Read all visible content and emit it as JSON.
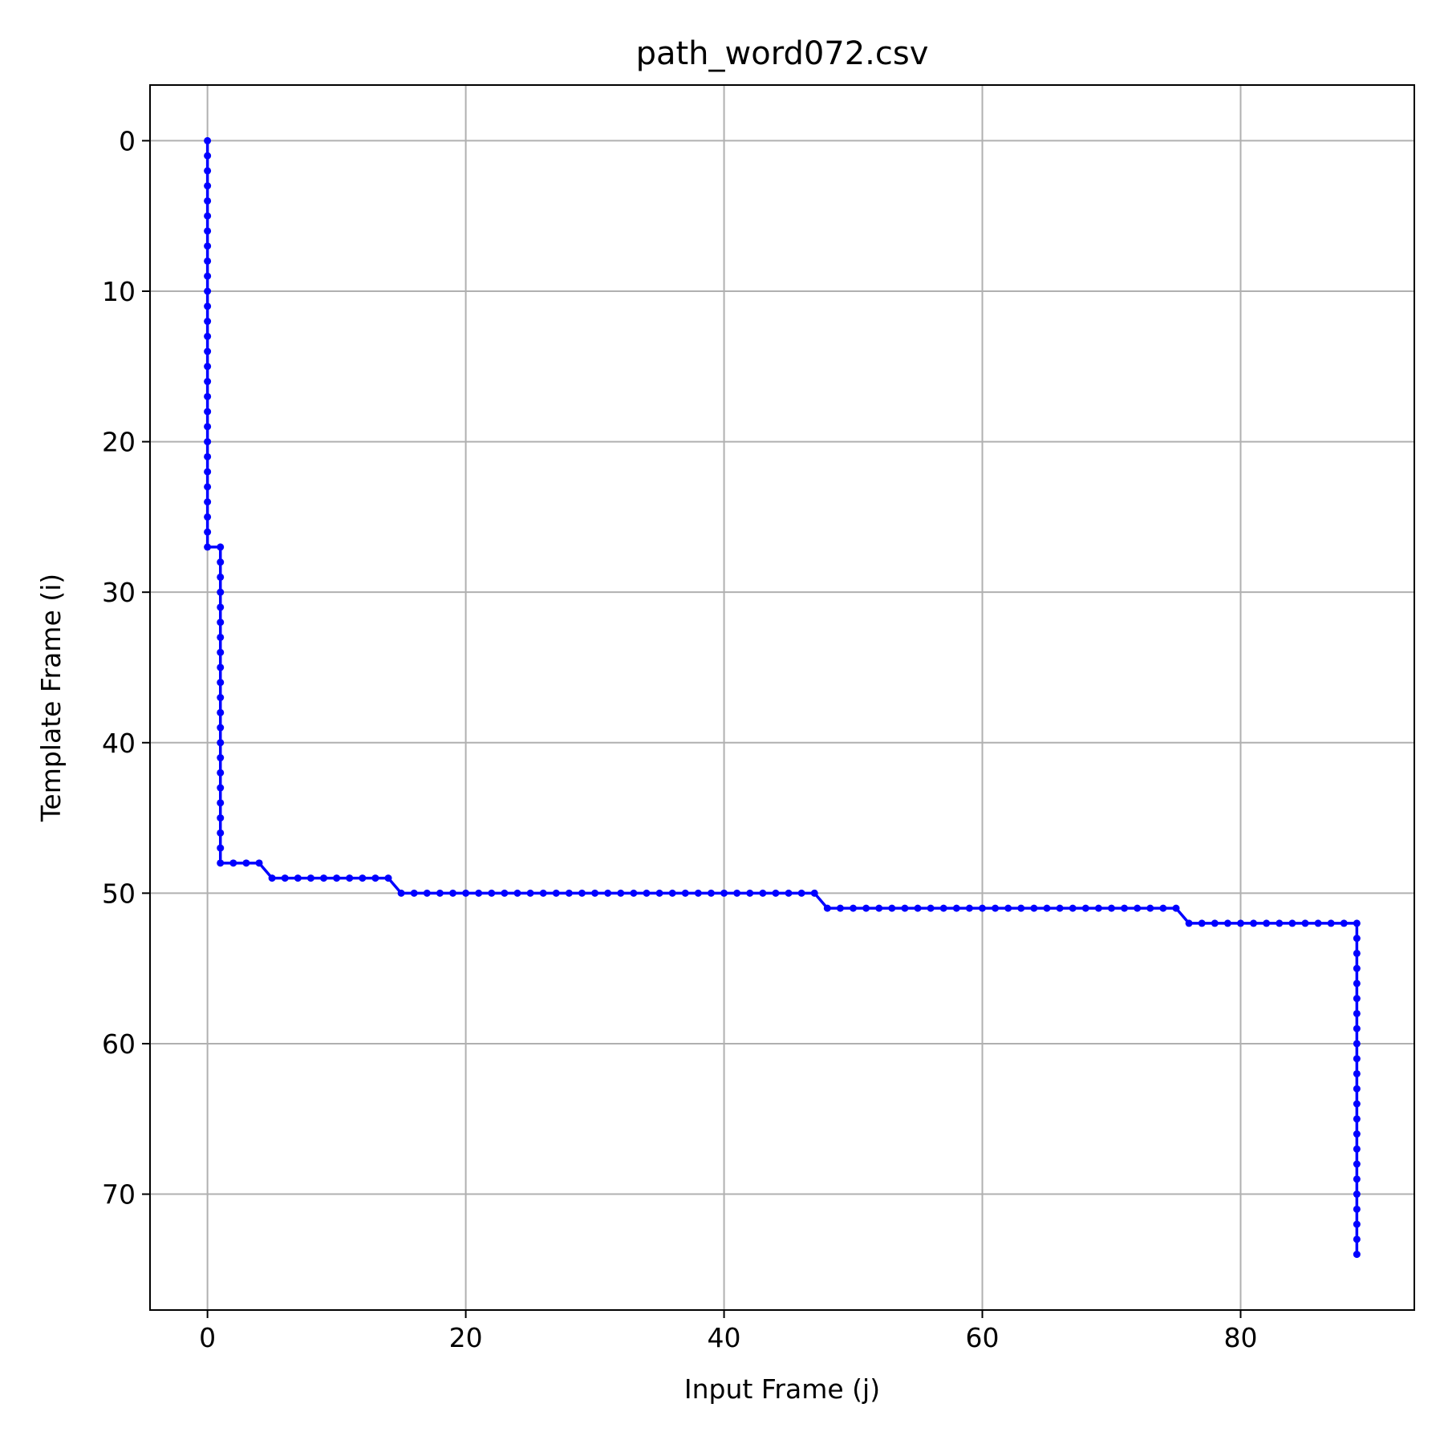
{
  "chart_data": {
    "type": "line",
    "title": "path_word072.csv",
    "xlabel": "Input Frame (j)",
    "ylabel": "Template Frame (i)",
    "xlim": [
      -4.45,
      93.45
    ],
    "ylim": [
      77.7,
      -3.7
    ],
    "y_inverted": true,
    "xticks": [
      0,
      20,
      40,
      60,
      80
    ],
    "yticks": [
      0,
      10,
      20,
      30,
      40,
      50,
      60,
      70
    ],
    "grid": true,
    "legend": null,
    "series": [
      {
        "name": "warping path",
        "color": "#0000ff",
        "marker": "dot",
        "segments": [
          {
            "axis": "v",
            "fixed": 0,
            "from": 0,
            "to": 27
          },
          {
            "axis": "h",
            "fixed": 27,
            "from": 0,
            "to": 1
          },
          {
            "axis": "v",
            "fixed": 1,
            "from": 27,
            "to": 48
          },
          {
            "axis": "h",
            "fixed": 48,
            "from": 1,
            "to": 4
          },
          {
            "axis": "h",
            "fixed": 49,
            "from": 5,
            "to": 14
          },
          {
            "axis": "h",
            "fixed": 50,
            "from": 15,
            "to": 47
          },
          {
            "axis": "h",
            "fixed": 51,
            "from": 48,
            "to": 75
          },
          {
            "axis": "h",
            "fixed": 52,
            "from": 76,
            "to": 89
          },
          {
            "axis": "v",
            "fixed": 89,
            "from": 52,
            "to": 74
          }
        ]
      }
    ]
  }
}
